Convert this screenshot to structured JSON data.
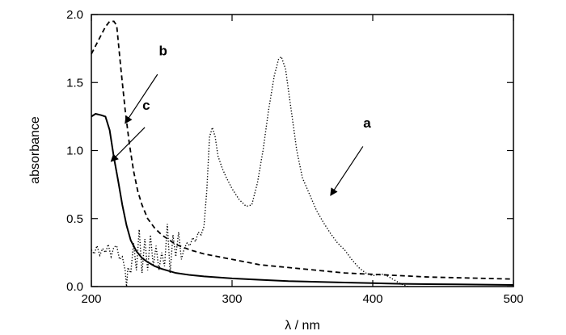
{
  "chart_data": {
    "type": "line",
    "title": "",
    "xlabel": "λ / nm",
    "ylabel": "absorbance",
    "xlim": [
      200,
      500
    ],
    "ylim": [
      0,
      2.0
    ],
    "grid": false,
    "x_ticks": [
      200,
      300,
      400,
      500
    ],
    "y_ticks": [
      0.0,
      0.5,
      1.0,
      1.5,
      2.0
    ],
    "x_tick_labels": [
      "200",
      "300",
      "400",
      "500"
    ],
    "y_tick_labels": [
      "0.0",
      "0.5",
      "1.0",
      "1.5",
      "2.0"
    ],
    "series": [
      {
        "label": "a",
        "style": "dotted",
        "points": [
          [
            200,
            0.27
          ],
          [
            202,
            0.24
          ],
          [
            204,
            0.3
          ],
          [
            206,
            0.23
          ],
          [
            208,
            0.28
          ],
          [
            210,
            0.25
          ],
          [
            212,
            0.31
          ],
          [
            214,
            0.22
          ],
          [
            216,
            0.29
          ],
          [
            218,
            0.3
          ],
          [
            220,
            0.2
          ],
          [
            222,
            0.22
          ],
          [
            224,
            0.12
          ],
          [
            225,
            0.0
          ],
          [
            226,
            0.14
          ],
          [
            228,
            0.1
          ],
          [
            230,
            0.32
          ],
          [
            232,
            0.12
          ],
          [
            234,
            0.42
          ],
          [
            236,
            0.1
          ],
          [
            238,
            0.35
          ],
          [
            240,
            0.12
          ],
          [
            242,
            0.38
          ],
          [
            244,
            0.15
          ],
          [
            246,
            0.3
          ],
          [
            248,
            0.12
          ],
          [
            250,
            0.25
          ],
          [
            252,
            0.15
          ],
          [
            254,
            0.46
          ],
          [
            256,
            0.1
          ],
          [
            258,
            0.38
          ],
          [
            260,
            0.22
          ],
          [
            262,
            0.4
          ],
          [
            264,
            0.2
          ],
          [
            266,
            0.28
          ],
          [
            268,
            0.32
          ],
          [
            270,
            0.3
          ],
          [
            272,
            0.36
          ],
          [
            274,
            0.33
          ],
          [
            276,
            0.4
          ],
          [
            278,
            0.38
          ],
          [
            280,
            0.44
          ],
          [
            282,
            0.7
          ],
          [
            284,
            1.1
          ],
          [
            286,
            1.17
          ],
          [
            288,
            1.1
          ],
          [
            290,
            0.96
          ],
          [
            293,
            0.87
          ],
          [
            296,
            0.8
          ],
          [
            300,
            0.72
          ],
          [
            305,
            0.64
          ],
          [
            310,
            0.59
          ],
          [
            314,
            0.6
          ],
          [
            318,
            0.76
          ],
          [
            322,
            1.0
          ],
          [
            326,
            1.3
          ],
          [
            330,
            1.55
          ],
          [
            333,
            1.67
          ],
          [
            335,
            1.69
          ],
          [
            338,
            1.6
          ],
          [
            342,
            1.3
          ],
          [
            346,
            1.0
          ],
          [
            350,
            0.8
          ],
          [
            355,
            0.68
          ],
          [
            360,
            0.56
          ],
          [
            365,
            0.47
          ],
          [
            370,
            0.39
          ],
          [
            375,
            0.32
          ],
          [
            380,
            0.27
          ],
          [
            385,
            0.2
          ],
          [
            390,
            0.14
          ],
          [
            395,
            0.1
          ],
          [
            400,
            0.08
          ],
          [
            405,
            0.09
          ],
          [
            408,
            0.09
          ],
          [
            410,
            0.08
          ],
          [
            415,
            0.05
          ],
          [
            420,
            0.02
          ],
          [
            425,
            0.0
          ]
        ]
      },
      {
        "label": "b",
        "style": "dashed",
        "points": [
          [
            200,
            1.71
          ],
          [
            203,
            1.77
          ],
          [
            206,
            1.83
          ],
          [
            210,
            1.91
          ],
          [
            213,
            1.95
          ],
          [
            216,
            1.95
          ],
          [
            218,
            1.92
          ],
          [
            221,
            1.6
          ],
          [
            224,
            1.3
          ],
          [
            227,
            1.05
          ],
          [
            230,
            0.85
          ],
          [
            233,
            0.7
          ],
          [
            236,
            0.6
          ],
          [
            240,
            0.5
          ],
          [
            245,
            0.43
          ],
          [
            250,
            0.38
          ],
          [
            260,
            0.31
          ],
          [
            270,
            0.27
          ],
          [
            280,
            0.24
          ],
          [
            300,
            0.2
          ],
          [
            320,
            0.16
          ],
          [
            340,
            0.14
          ],
          [
            360,
            0.12
          ],
          [
            380,
            0.1
          ],
          [
            400,
            0.09
          ],
          [
            420,
            0.08
          ],
          [
            440,
            0.07
          ],
          [
            460,
            0.065
          ],
          [
            480,
            0.06
          ],
          [
            500,
            0.055
          ]
        ]
      },
      {
        "label": "c",
        "style": "solid",
        "points": [
          [
            200,
            1.25
          ],
          [
            203,
            1.27
          ],
          [
            207,
            1.26
          ],
          [
            210,
            1.25
          ],
          [
            213,
            1.15
          ],
          [
            216,
            0.95
          ],
          [
            219,
            0.78
          ],
          [
            222,
            0.6
          ],
          [
            225,
            0.45
          ],
          [
            228,
            0.34
          ],
          [
            232,
            0.26
          ],
          [
            236,
            0.21
          ],
          [
            240,
            0.18
          ],
          [
            245,
            0.15
          ],
          [
            250,
            0.13
          ],
          [
            260,
            0.1
          ],
          [
            270,
            0.085
          ],
          [
            280,
            0.075
          ],
          [
            300,
            0.06
          ],
          [
            320,
            0.05
          ],
          [
            340,
            0.04
          ],
          [
            360,
            0.035
          ],
          [
            380,
            0.03
          ],
          [
            400,
            0.025
          ],
          [
            420,
            0.02
          ],
          [
            440,
            0.018
          ],
          [
            460,
            0.016
          ],
          [
            480,
            0.014
          ],
          [
            500,
            0.012
          ]
        ]
      }
    ],
    "annotations": [
      {
        "text": "a",
        "label_at": [
          396,
          1.17
        ],
        "arrow_tail": [
          393,
          1.03
        ],
        "arrow_head": [
          370,
          0.67
        ]
      },
      {
        "text": "b",
        "label_at": [
          251,
          1.7
        ],
        "arrow_tail": [
          247,
          1.56
        ],
        "arrow_head": [
          224,
          1.2
        ]
      },
      {
        "text": "c",
        "label_at": [
          239,
          1.3
        ],
        "arrow_tail": [
          238,
          1.17
        ],
        "arrow_head": [
          214,
          0.92
        ]
      }
    ]
  }
}
